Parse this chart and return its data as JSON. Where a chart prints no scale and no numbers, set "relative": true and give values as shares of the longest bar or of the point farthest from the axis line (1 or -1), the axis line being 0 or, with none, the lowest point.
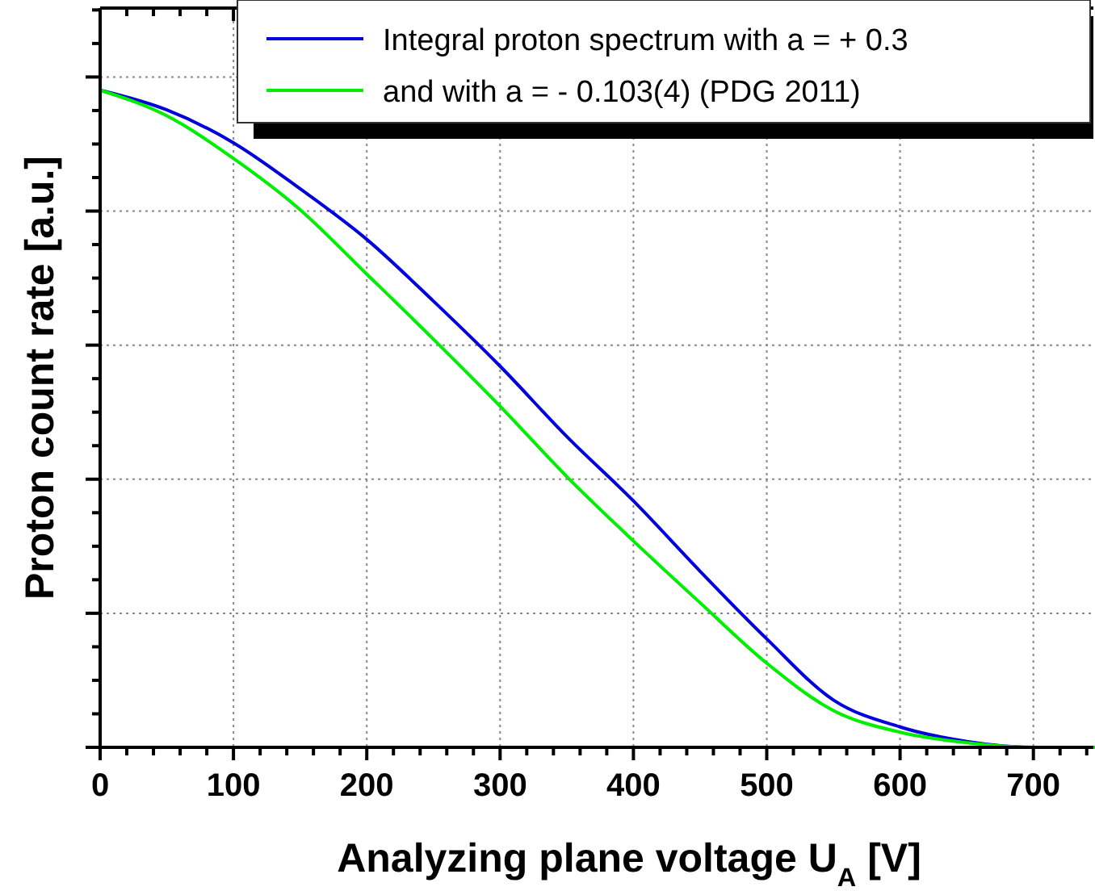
{
  "chart_data": {
    "type": "line",
    "relative": true,
    "xlabel": "Analyzing plane voltage U$_{A}$ [V]",
    "ylabel": "Proton count rate [a.u.]",
    "x": [
      0,
      50,
      100,
      150,
      200,
      250,
      300,
      350,
      400,
      450,
      500,
      550,
      600,
      650,
      700,
      745
    ],
    "xlim": [
      0,
      745
    ],
    "xticks": [
      0,
      {
        "value": 20,
        "label": null
      },
      {
        "value": 40,
        "label": null
      },
      {
        "value": 60,
        "label": null
      },
      {
        "value": 80,
        "label": null
      },
      100,
      {
        "value": 120,
        "label": null
      },
      {
        "value": 140,
        "label": null
      },
      {
        "value": 160,
        "label": null
      },
      {
        "value": 180,
        "label": null
      },
      200,
      {
        "value": 220,
        "label": null
      },
      {
        "value": 240,
        "label": null
      },
      {
        "value": 260,
        "label": null
      },
      {
        "value": 280,
        "label": null
      },
      300,
      {
        "value": 320,
        "label": null
      },
      {
        "value": 340,
        "label": null
      },
      {
        "value": 360,
        "label": null
      },
      {
        "value": 380,
        "label": null
      },
      400,
      {
        "value": 420,
        "label": null
      },
      {
        "value": 440,
        "label": null
      },
      {
        "value": 460,
        "label": null
      },
      {
        "value": 480,
        "label": null
      },
      500,
      {
        "value": 520,
        "label": null
      },
      {
        "value": 540,
        "label": null
      },
      {
        "value": 560,
        "label": null
      },
      {
        "value": 580,
        "label": null
      },
      600,
      {
        "value": 620,
        "label": null
      },
      {
        "value": 640,
        "label": null
      },
      {
        "value": 660,
        "label": null
      },
      {
        "value": 680,
        "label": null
      },
      700,
      {
        "value": 720,
        "label": null
      },
      {
        "value": 740,
        "label": null
      }
    ],
    "series": [
      {
        "name": "Integral proton spectrum with a = + 0.3",
        "color": "#0000dd",
        "values": [
          1,
          0.97,
          0.92,
          0.85,
          0.773,
          0.679,
          0.58,
          0.473,
          0.375,
          0.268,
          0.165,
          0.072,
          0.031,
          0.009,
          0,
          0
        ]
      },
      {
        "name": "and with a = - 0.103(4) (PDG 2011)",
        "color": "#00ee00",
        "values": [
          1,
          0.961,
          0.896,
          0.818,
          0.72,
          0.621,
          0.519,
          0.412,
          0.314,
          0.22,
          0.128,
          0.056,
          0.023,
          0.007,
          0,
          0
        ]
      }
    ],
    "grid": true,
    "legend": "top right",
    "line_style": "solid"
  }
}
